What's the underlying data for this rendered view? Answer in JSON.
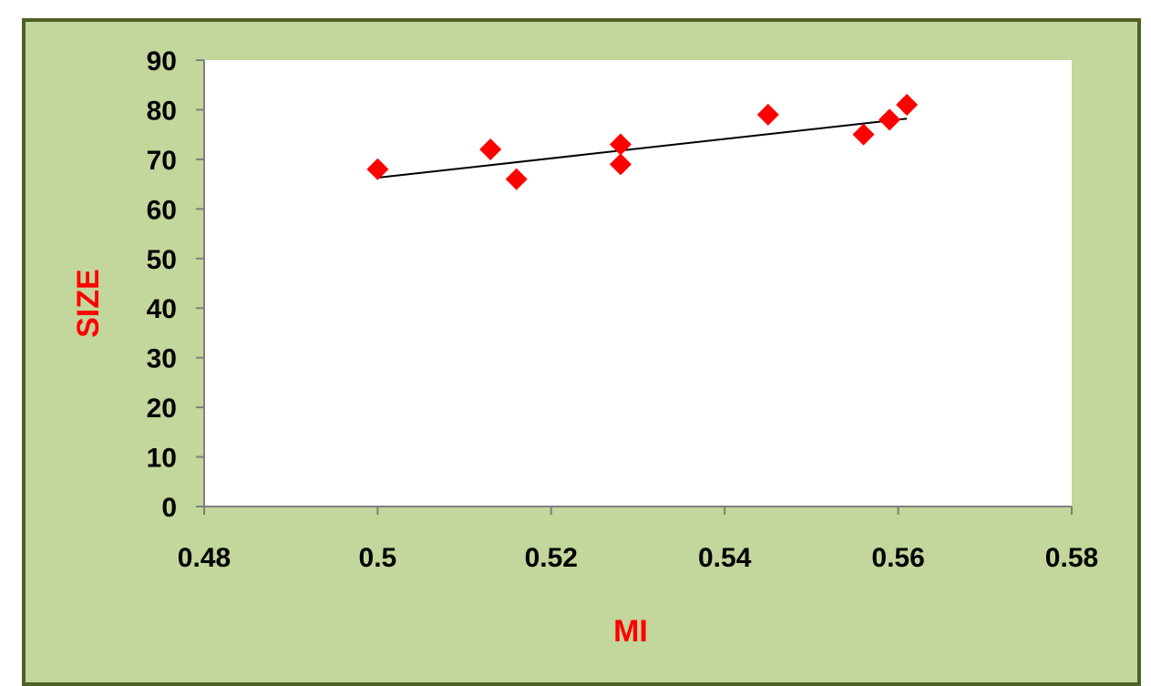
{
  "chart_data": {
    "type": "scatter",
    "xlabel": "MI",
    "ylabel": "SIZE",
    "xlim": [
      0.48,
      0.58
    ],
    "ylim": [
      0,
      90
    ],
    "x_ticks": [
      0.48,
      0.5,
      0.52,
      0.54,
      0.56,
      0.58
    ],
    "x_tick_labels": [
      "0.48",
      "0.5",
      "0.52",
      "0.54",
      "0.56",
      "0.58"
    ],
    "y_ticks": [
      0,
      10,
      20,
      30,
      40,
      50,
      60,
      70,
      80,
      90
    ],
    "y_tick_labels": [
      "0",
      "10",
      "20",
      "30",
      "40",
      "50",
      "60",
      "70",
      "80",
      "90"
    ],
    "grid": false,
    "series": [
      {
        "marker": "diamond",
        "color": "#ff0000",
        "points": [
          {
            "x": 0.5,
            "y": 68
          },
          {
            "x": 0.513,
            "y": 72
          },
          {
            "x": 0.516,
            "y": 66
          },
          {
            "x": 0.528,
            "y": 73
          },
          {
            "x": 0.528,
            "y": 69
          },
          {
            "x": 0.545,
            "y": 79
          },
          {
            "x": 0.556,
            "y": 75
          },
          {
            "x": 0.559,
            "y": 78
          },
          {
            "x": 0.561,
            "y": 81
          }
        ]
      }
    ],
    "trendline": {
      "color": "#000000",
      "from": {
        "x": 0.5,
        "y": 66.3
      },
      "to": {
        "x": 0.561,
        "y": 78.2
      }
    },
    "colors": {
      "frame_background": "#c3d69b",
      "frame_border": "#4e6228",
      "plot_background": "#ffffff",
      "axis_title": "#ff0000"
    }
  }
}
